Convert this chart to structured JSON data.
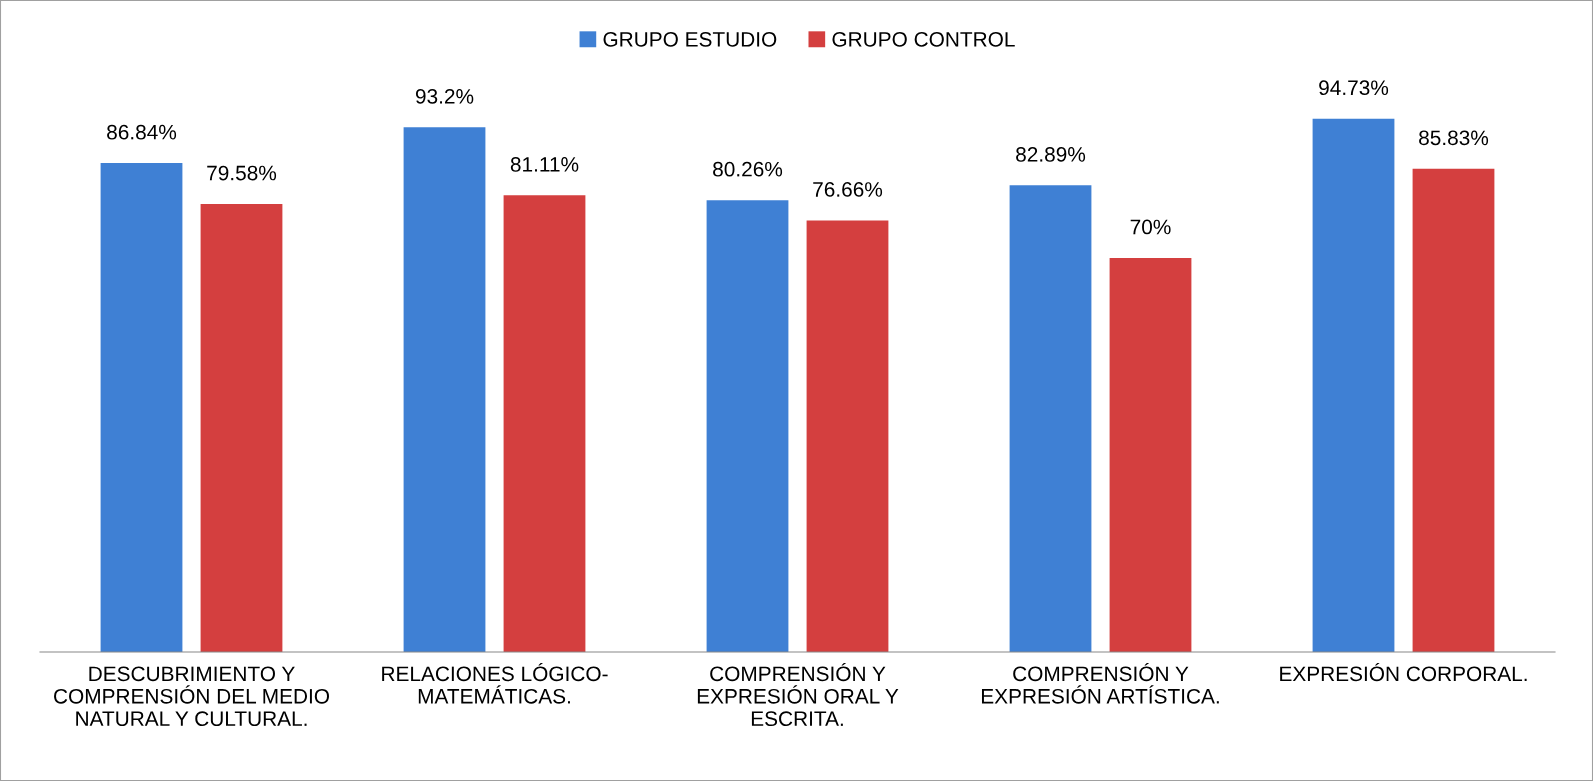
{
  "chart_data": {
    "type": "bar",
    "categories": [
      "DESCUBRIMIENTO Y\nCOMPRENSIÓN DEL MEDIO\nNATURAL Y CULTURAL.",
      "RELACIONES LÓGICO-\nMATEMÁTICAS.",
      "COMPRENSIÓN Y\nEXPRESIÓN ORAL Y\nESCRITA.",
      "COMPRENSIÓN Y\nEXPRESIÓN ARTÍSTICA.",
      "EXPRESIÓN CORPORAL."
    ],
    "series": [
      {
        "name": "GRUPO ESTUDIO",
        "color": "#3f80d4",
        "values": [
          86.84,
          93.2,
          80.26,
          82.89,
          94.73
        ],
        "value_labels": [
          "86.84%",
          "93.2%",
          "80.26%",
          "82.89%",
          "94.73%"
        ]
      },
      {
        "name": "GRUPO CONTROL",
        "color": "#d43f3f",
        "values": [
          79.58,
          81.11,
          76.66,
          70,
          85.83
        ],
        "value_labels": [
          "79.58%",
          "81.11%",
          "76.66%",
          "70%",
          "85.83%"
        ]
      }
    ],
    "legend": "top",
    "grid": false
  }
}
